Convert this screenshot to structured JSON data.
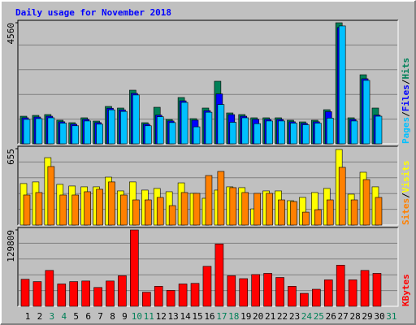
{
  "title": "Daily usage for November 2018",
  "chart_data": [
    {
      "type": "bar",
      "ylim": [
        0,
        4560
      ],
      "yticks": [
        4560
      ],
      "series": [
        {
          "name": "Hits",
          "color": "#008058",
          "values": [
            1040,
            1071,
            1102,
            888,
            796,
            980,
            857,
            1408,
            1347,
            2020,
            796,
            1377,
            918,
            1744,
            949,
            1347,
            2357,
            1163,
            1102,
            980,
            980,
            980,
            888,
            826,
            888,
            1285,
            4560,
            980,
            2601,
            1347,
            null
          ]
        },
        {
          "name": "Files",
          "color": "#0000ff",
          "values": [
            980,
            1010,
            1040,
            830,
            740,
            920,
            800,
            1340,
            1280,
            1900,
            740,
            1080,
            860,
            1620,
            890,
            1250,
            1880,
            1100,
            1040,
            920,
            920,
            920,
            830,
            770,
            830,
            1210,
            4380,
            920,
            2450,
            1080,
            null
          ]
        },
        {
          "name": "Pages",
          "color": "#00c0ff",
          "values": [
            920,
            950,
            980,
            780,
            680,
            860,
            740,
            1280,
            1220,
            1840,
            680,
            1020,
            800,
            1560,
            640,
            1190,
            1480,
            810,
            980,
            760,
            860,
            860,
            780,
            720,
            780,
            970,
            4440,
            860,
            2390,
            1040,
            null
          ]
        }
      ]
    },
    {
      "type": "bar",
      "ylim": [
        0,
        655
      ],
      "yticks": [
        655
      ],
      "series": [
        {
          "name": "Visits",
          "color": "#ffff00",
          "values": [
            356,
            370,
            578,
            349,
            335,
            328,
            328,
            411,
            293,
            370,
            300,
            314,
            286,
            362,
            272,
            230,
            300,
            328,
            321,
            139,
            293,
            293,
            209,
            237,
            279,
            314,
            648,
            265,
            453,
            328,
            null
          ]
        },
        {
          "name": "Sites",
          "color": "#ff8000",
          "values": [
            258,
            279,
            502,
            258,
            258,
            286,
            307,
            370,
            258,
            216,
            216,
            237,
            167,
            279,
            272,
            425,
            460,
            321,
            279,
            272,
            272,
            216,
            202,
            111,
            132,
            216,
            495,
            216,
            390,
            237,
            null
          ]
        }
      ]
    },
    {
      "type": "bar",
      "ylim": [
        0,
        129809
      ],
      "yticks": [
        129809
      ],
      "categories": [
        "1",
        "2",
        "3",
        "4",
        "5",
        "6",
        "7",
        "8",
        "9",
        "10",
        "11",
        "12",
        "13",
        "14",
        "15",
        "16",
        "17",
        "18",
        "19",
        "20",
        "21",
        "22",
        "23",
        "24",
        "25",
        "26",
        "27",
        "28",
        "29",
        "30",
        "31"
      ],
      "category_colors": [
        "#000000",
        "#000000",
        "#008058",
        "#008058",
        "#000000",
        "#000000",
        "#000000",
        "#000000",
        "#000000",
        "#008058",
        "#008058",
        "#000000",
        "#000000",
        "#000000",
        "#000000",
        "#000000",
        "#008058",
        "#008058",
        "#000000",
        "#000000",
        "#000000",
        "#000000",
        "#000000",
        "#008058",
        "#008058",
        "#000000",
        "#000000",
        "#000000",
        "#000000",
        "#000000",
        "#008058"
      ],
      "series": [
        {
          "name": "KBytes",
          "color": "#ff0000",
          "values": [
            46000,
            42000,
            61000,
            38000,
            42000,
            43000,
            32000,
            43000,
            52000,
            129809,
            24000,
            34000,
            27000,
            38000,
            39000,
            68000,
            106000,
            52000,
            47000,
            54000,
            56000,
            49000,
            34000,
            22000,
            29000,
            45000,
            70000,
            45000,
            61000,
            56000,
            null
          ]
        }
      ]
    }
  ]
}
